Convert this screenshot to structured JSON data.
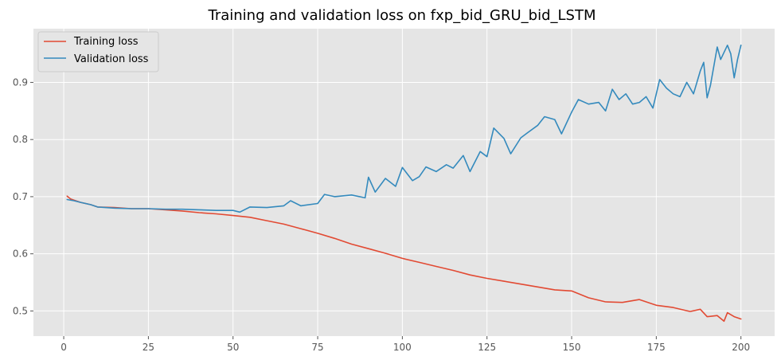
{
  "chart_data": {
    "type": "line",
    "title": "Training and validation loss on fxp_bid_GRU_bid_LSTM",
    "xlabel": "",
    "ylabel": "",
    "xlim": [
      -8.95,
      209.95
    ],
    "ylim": [
      0.456,
      0.994
    ],
    "xticks": [
      0,
      25,
      50,
      75,
      100,
      125,
      150,
      175,
      200
    ],
    "yticks": [
      0.5,
      0.6,
      0.7,
      0.8,
      0.9
    ],
    "ytick_labels": [
      "0.5",
      "0.6",
      "0.7",
      "0.8",
      "0.9"
    ],
    "grid": true,
    "legend_position": "upper-left",
    "series": [
      {
        "name": "Training loss",
        "color": "#E24A33",
        "x": [
          1,
          2,
          3,
          5,
          8,
          10,
          15,
          20,
          25,
          30,
          35,
          40,
          45,
          50,
          55,
          60,
          65,
          70,
          75,
          80,
          85,
          90,
          95,
          100,
          105,
          110,
          115,
          120,
          125,
          130,
          135,
          140,
          145,
          150,
          155,
          160,
          165,
          170,
          175,
          180,
          185,
          188,
          190,
          193,
          195,
          196,
          198,
          200
        ],
        "values": [
          0.701,
          0.696,
          0.694,
          0.69,
          0.686,
          0.682,
          0.681,
          0.679,
          0.679,
          0.677,
          0.675,
          0.672,
          0.67,
          0.667,
          0.664,
          0.658,
          0.652,
          0.644,
          0.636,
          0.627,
          0.617,
          0.609,
          0.601,
          0.592,
          0.585,
          0.578,
          0.571,
          0.563,
          0.557,
          0.552,
          0.547,
          0.542,
          0.537,
          0.535,
          0.523,
          0.516,
          0.515,
          0.52,
          0.51,
          0.506,
          0.499,
          0.503,
          0.49,
          0.492,
          0.482,
          0.497,
          0.49,
          0.486
        ]
      },
      {
        "name": "Validation loss",
        "color": "#348ABD",
        "x": [
          1,
          3,
          5,
          8,
          10,
          15,
          20,
          25,
          30,
          35,
          40,
          45,
          50,
          52,
          55,
          60,
          65,
          67,
          70,
          75,
          77,
          80,
          85,
          89,
          90,
          92,
          95,
          98,
          100,
          103,
          105,
          107,
          110,
          113,
          115,
          118,
          120,
          123,
          125,
          127,
          130,
          132,
          135,
          137,
          140,
          142,
          145,
          147,
          150,
          152,
          155,
          158,
          160,
          162,
          164,
          166,
          168,
          170,
          172,
          174,
          176,
          178,
          180,
          182,
          184,
          186,
          188,
          189,
          190,
          191,
          193,
          194,
          196,
          197,
          198,
          199,
          200
        ],
        "values": [
          0.695,
          0.693,
          0.69,
          0.686,
          0.682,
          0.68,
          0.679,
          0.679,
          0.678,
          0.678,
          0.677,
          0.676,
          0.676,
          0.673,
          0.682,
          0.681,
          0.684,
          0.693,
          0.684,
          0.688,
          0.704,
          0.7,
          0.703,
          0.698,
          0.734,
          0.708,
          0.732,
          0.718,
          0.751,
          0.728,
          0.735,
          0.752,
          0.744,
          0.756,
          0.75,
          0.772,
          0.744,
          0.779,
          0.77,
          0.82,
          0.802,
          0.775,
          0.803,
          0.812,
          0.825,
          0.84,
          0.835,
          0.81,
          0.848,
          0.87,
          0.862,
          0.865,
          0.85,
          0.888,
          0.87,
          0.88,
          0.862,
          0.865,
          0.875,
          0.855,
          0.905,
          0.89,
          0.88,
          0.875,
          0.9,
          0.88,
          0.92,
          0.935,
          0.873,
          0.895,
          0.962,
          0.94,
          0.965,
          0.95,
          0.908,
          0.94,
          0.965
        ]
      }
    ]
  }
}
